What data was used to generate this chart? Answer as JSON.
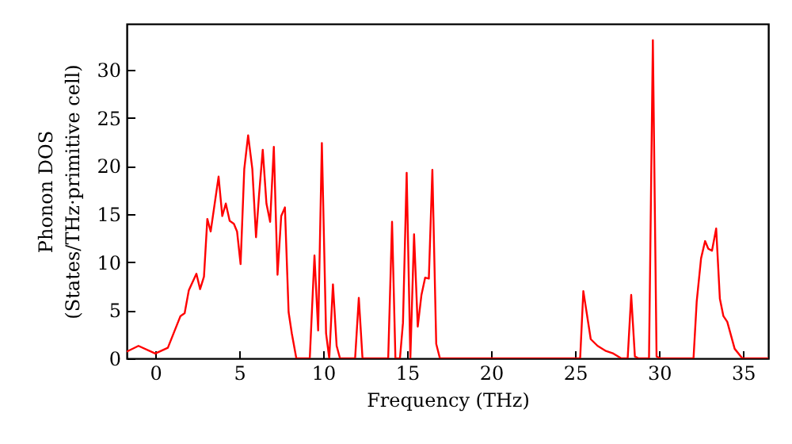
{
  "chart_data": {
    "type": "line",
    "xlabel": "Frequency (THz)",
    "ylabel": "Phonon DOS\n(States/THz·primitive cell)",
    "xlim": [
      -1.7,
      36.5
    ],
    "ylim": [
      0,
      34.8
    ],
    "xticks": [
      0,
      5,
      10,
      15,
      20,
      25,
      30,
      35
    ],
    "yticks": [
      0,
      5,
      10,
      15,
      20,
      25,
      30
    ],
    "grid": false,
    "marker": "none",
    "line_style": "solid",
    "series": [
      {
        "color": "#ff0000",
        "x": [
          -1.7,
          -1.0,
          0,
          0.75,
          1.5,
          1.75,
          2.0,
          2.45,
          2.67,
          2.9,
          3.1,
          3.3,
          3.77,
          3.99,
          4.2,
          4.43,
          4.68,
          4.87,
          5.08,
          5.3,
          5.53,
          5.78,
          6.0,
          6.18,
          6.4,
          6.62,
          6.84,
          7.06,
          7.28,
          7.5,
          7.72,
          7.94,
          8.13,
          8.4,
          9.2,
          9.48,
          9.7,
          9.92,
          10.17,
          10.36,
          10.58,
          10.8,
          11.0,
          11.9,
          12.12,
          12.34,
          13.87,
          14.1,
          14.3,
          14.57,
          14.75,
          14.97,
          15.19,
          15.41,
          15.63,
          15.85,
          16.07,
          16.29,
          16.5,
          16.73,
          16.95,
          25.3,
          25.49,
          25.93,
          26.34,
          26.8,
          27.28,
          27.75,
          28.13,
          28.34,
          28.56,
          28.78,
          29.4,
          29.63,
          29.85,
          30.07,
          32.05,
          32.24,
          32.5,
          32.74,
          32.93,
          33.15,
          33.4,
          33.62,
          33.83,
          34.06,
          34.5,
          34.96,
          36.5
        ],
        "values": [
          0.7,
          1.3,
          0.5,
          1.1,
          4.4,
          4.7,
          7.1,
          8.8,
          7.2,
          8.5,
          14.5,
          13.2,
          18.9,
          14.8,
          16.1,
          14.3,
          14.0,
          13.2,
          9.8,
          19.7,
          23.2,
          19.7,
          12.6,
          17.0,
          21.7,
          16.1,
          14.2,
          22.0,
          8.7,
          14.8,
          15.7,
          4.8,
          2.6,
          0,
          0,
          10.7,
          2.9,
          22.4,
          2.6,
          0,
          7.7,
          1.3,
          0,
          0,
          6.3,
          0,
          0,
          14.2,
          0,
          0,
          3.7,
          19.3,
          0,
          12.9,
          3.3,
          6.6,
          8.4,
          8.3,
          19.6,
          1.5,
          0,
          0,
          7.0,
          2.0,
          1.3,
          0.8,
          0.5,
          0,
          0,
          6.6,
          0.2,
          0,
          0,
          33.1,
          0.2,
          0,
          0,
          5.9,
          10.4,
          12.2,
          11.4,
          11.2,
          13.5,
          6.2,
          4.4,
          3.8,
          1.0,
          0,
          0
        ]
      }
    ]
  }
}
